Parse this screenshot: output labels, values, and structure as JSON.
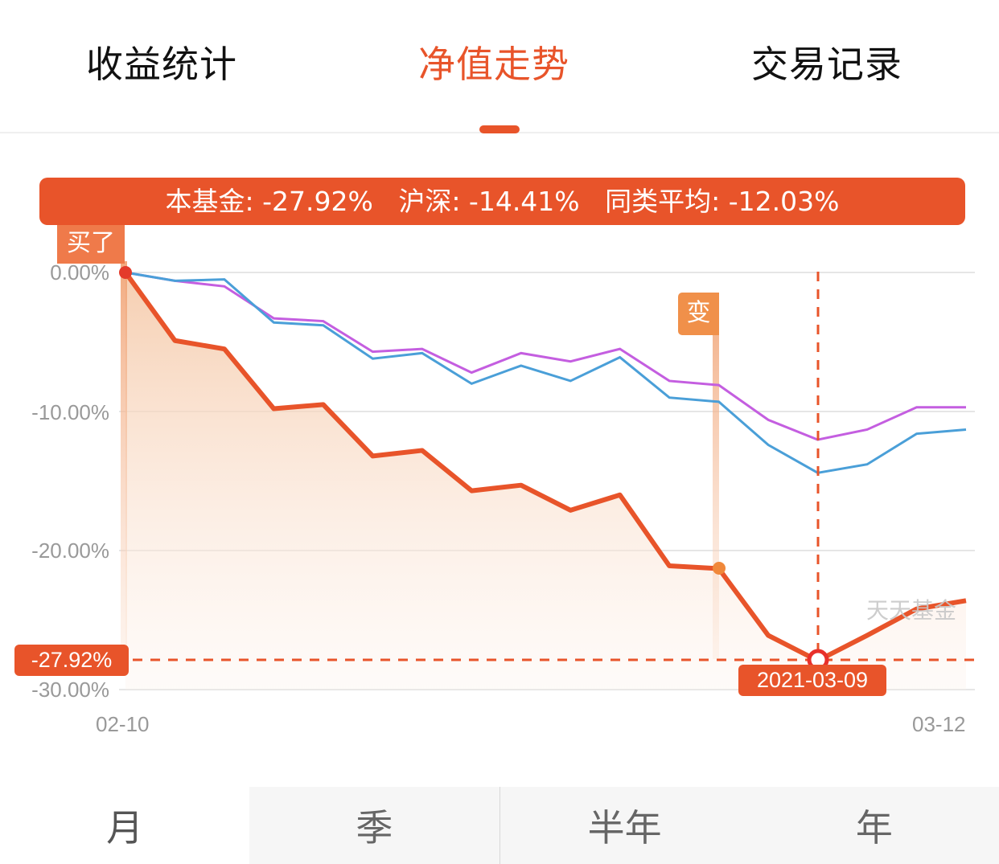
{
  "tabs": [
    {
      "label": "收益统计",
      "active": false
    },
    {
      "label": "净值走势",
      "active": true
    },
    {
      "label": "交易记录",
      "active": false
    }
  ],
  "summary": {
    "text": "本基金: -27.92%   沪深: -14.41%   同类平均: -12.03%"
  },
  "markers": {
    "buy_label": "买了",
    "change_label": "变",
    "crosshair_value": "-27.92%",
    "crosshair_date": "2021-03-09"
  },
  "watermark": "天天基金",
  "colors": {
    "accent": "#e8542a",
    "fund": "#e8542a",
    "hs300": "#4a9fd8",
    "peer_avg": "#c45ee0",
    "flag": "#f0904a"
  },
  "periods": [
    {
      "label": "月",
      "active": true
    },
    {
      "label": "季",
      "active": false
    },
    {
      "label": "半年",
      "active": false
    },
    {
      "label": "年",
      "active": false
    }
  ],
  "chart_data": {
    "type": "line",
    "title": "净值走势",
    "xlabel": "",
    "ylabel": "",
    "x_tick_labels": [
      "02-10",
      "03-12"
    ],
    "y_tick_labels": [
      "0.00%",
      "-10.00%",
      "-20.00%",
      "-30.00%"
    ],
    "ylim": [
      -30,
      0
    ],
    "grid": true,
    "legend": [
      "本基金",
      "沪深",
      "同类平均"
    ],
    "x": [
      1,
      2,
      3,
      4,
      5,
      6,
      7,
      8,
      9,
      10,
      11,
      12,
      13,
      14,
      15,
      16,
      17,
      18
    ],
    "series": [
      {
        "name": "本基金",
        "color": "#e8542a",
        "area": true,
        "values": [
          0.0,
          -4.9,
          -5.5,
          -9.8,
          -9.5,
          -13.2,
          -12.8,
          -15.7,
          -15.3,
          -17.1,
          -16.0,
          -21.1,
          -21.3,
          -26.1,
          -27.92,
          -26.1,
          -24.2,
          -23.6
        ]
      },
      {
        "name": "沪深",
        "color": "#4a9fd8",
        "values": [
          0.0,
          -0.6,
          -0.5,
          -3.6,
          -3.8,
          -6.2,
          -5.8,
          -8.0,
          -6.7,
          -7.8,
          -6.1,
          -9.0,
          -9.3,
          -12.4,
          -14.41,
          -13.8,
          -11.6,
          -11.3
        ]
      },
      {
        "name": "同类平均",
        "color": "#c45ee0",
        "values": [
          0.0,
          -0.6,
          -1.0,
          -3.3,
          -3.5,
          -5.7,
          -5.5,
          -7.2,
          -5.8,
          -6.4,
          -5.5,
          -7.8,
          -8.1,
          -10.6,
          -12.03,
          -11.3,
          -9.7,
          -9.7
        ]
      }
    ],
    "annotations": [
      {
        "type": "flag",
        "label": "买了",
        "index": 0
      },
      {
        "type": "flag",
        "label": "变",
        "index": 12
      },
      {
        "type": "crosshair",
        "index": 14,
        "value": "-27.92%",
        "date": "2021-03-09"
      }
    ]
  }
}
